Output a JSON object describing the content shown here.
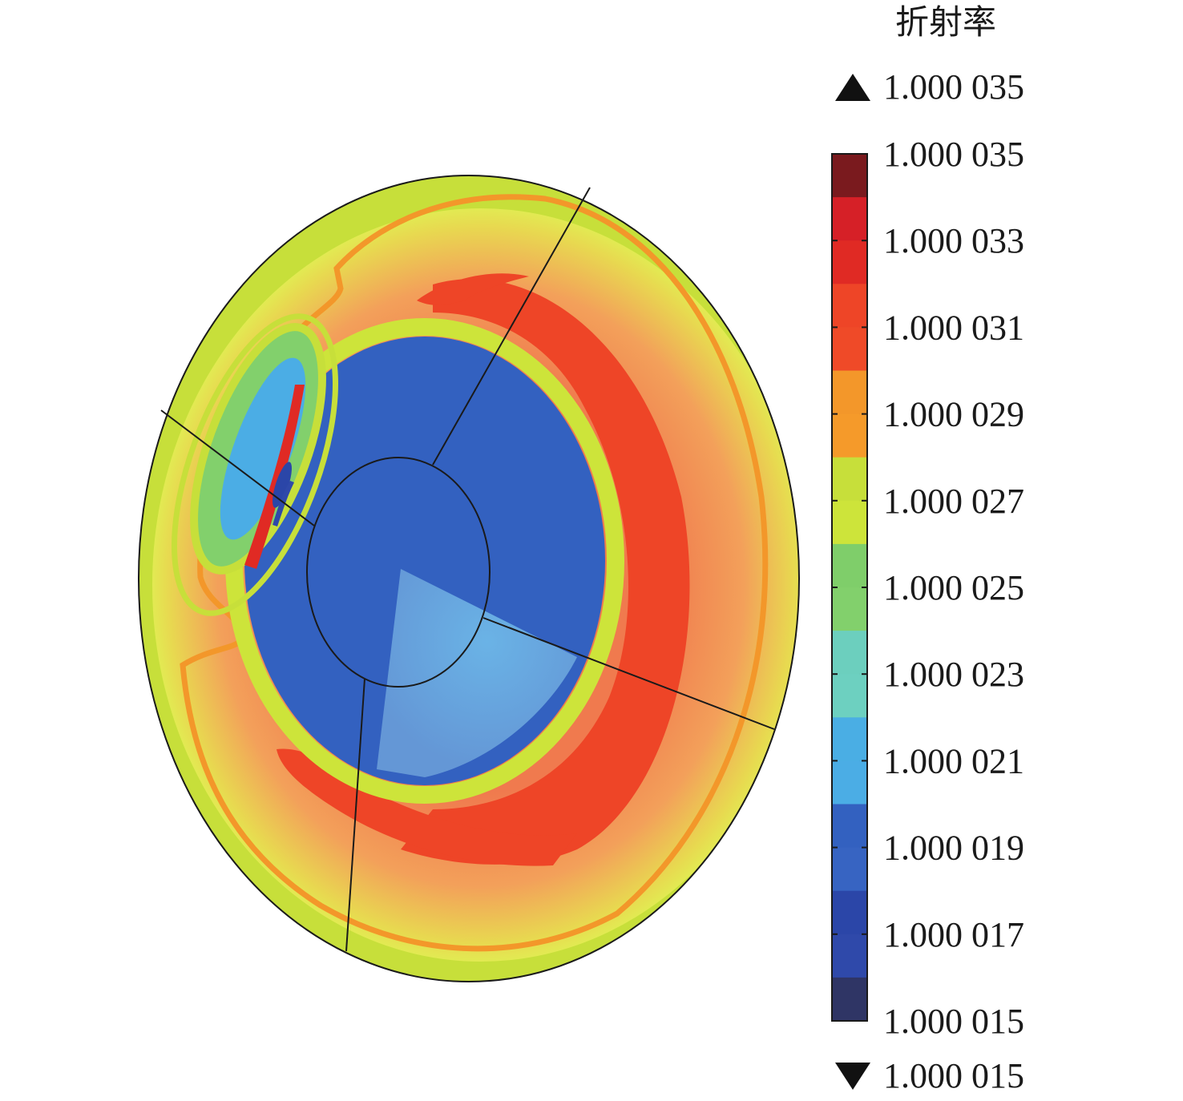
{
  "chart_data": {
    "type": "heatmap",
    "title": "",
    "colorbar": {
      "title": "折射率",
      "max_marker": "1.000 035",
      "min_marker": "1.000 015",
      "ticks": [
        "1.000 035",
        "1.000 033",
        "1.000 031",
        "1.000 029",
        "1.000 027",
        "1.000 025",
        "1.000 023",
        "1.000 021",
        "1.000 019",
        "1.000 017",
        "1.000 015"
      ],
      "range": [
        1.000015,
        1.000035
      ],
      "levels": [
        {
          "from": 1.000034,
          "to": 1.000035,
          "color": "#7a1a1e"
        },
        {
          "from": 1.000033,
          "to": 1.000034,
          "color": "#d62027"
        },
        {
          "from": 1.000032,
          "to": 1.000033,
          "color": "#e02a24"
        },
        {
          "from": 1.000031,
          "to": 1.000032,
          "color": "#ee4527"
        },
        {
          "from": 1.00003,
          "to": 1.000031,
          "color": "#ef4a28"
        },
        {
          "from": 1.000029,
          "to": 1.00003,
          "color": "#f3972a"
        },
        {
          "from": 1.000028,
          "to": 1.000029,
          "color": "#f59a2a"
        },
        {
          "from": 1.000027,
          "to": 1.000028,
          "color": "#c7df3a"
        },
        {
          "from": 1.000026,
          "to": 1.000027,
          "color": "#cde43a"
        },
        {
          "from": 1.000025,
          "to": 1.000026,
          "color": "#7fce6a"
        },
        {
          "from": 1.000024,
          "to": 1.000025,
          "color": "#82d06c"
        },
        {
          "from": 1.000023,
          "to": 1.000024,
          "color": "#6ccfbe"
        },
        {
          "from": 1.000022,
          "to": 1.000023,
          "color": "#6dd0c0"
        },
        {
          "from": 1.000021,
          "to": 1.000022,
          "color": "#4aaee4"
        },
        {
          "from": 1.00002,
          "to": 1.000021,
          "color": "#4badE5"
        },
        {
          "from": 1.000019,
          "to": 1.00002,
          "color": "#3361c0"
        },
        {
          "from": 1.000018,
          "to": 1.000019,
          "color": "#3764c2"
        },
        {
          "from": 1.000017,
          "to": 1.000018,
          "color": "#2b46a8"
        },
        {
          "from": 1.000016,
          "to": 1.000017,
          "color": "#2f49aa"
        },
        {
          "from": 1.000015,
          "to": 1.000016,
          "color": "#2f3565"
        }
      ]
    },
    "field_regions": [
      {
        "region": "outer-edge",
        "value": 1.000027
      },
      {
        "region": "outer-ring",
        "value": 1.0000305
      },
      {
        "region": "contour-1.000029",
        "value": 1.000029
      },
      {
        "region": "outer-red-band",
        "value": 1.0000318
      },
      {
        "region": "lower-red-band",
        "value": 1.0000318
      },
      {
        "region": "upper-red-band",
        "value": 1.0000318
      },
      {
        "region": "inner-rim",
        "value": 1.000026
      },
      {
        "region": "blue-disk",
        "value": 1.0000195
      },
      {
        "region": "central-zone",
        "value": 1.0000198
      },
      {
        "region": "vortex-outer",
        "value": 1.000027
      },
      {
        "region": "vortex-middle",
        "value": 1.000024
      },
      {
        "region": "vortex-inner",
        "value": 1.00002
      },
      {
        "region": "vortex-core",
        "value": 1.000017
      },
      {
        "region": "vortex-red-streak",
        "value": 1.000032
      },
      {
        "region": "vortex-dark-streak",
        "value": 1.000016
      }
    ]
  }
}
